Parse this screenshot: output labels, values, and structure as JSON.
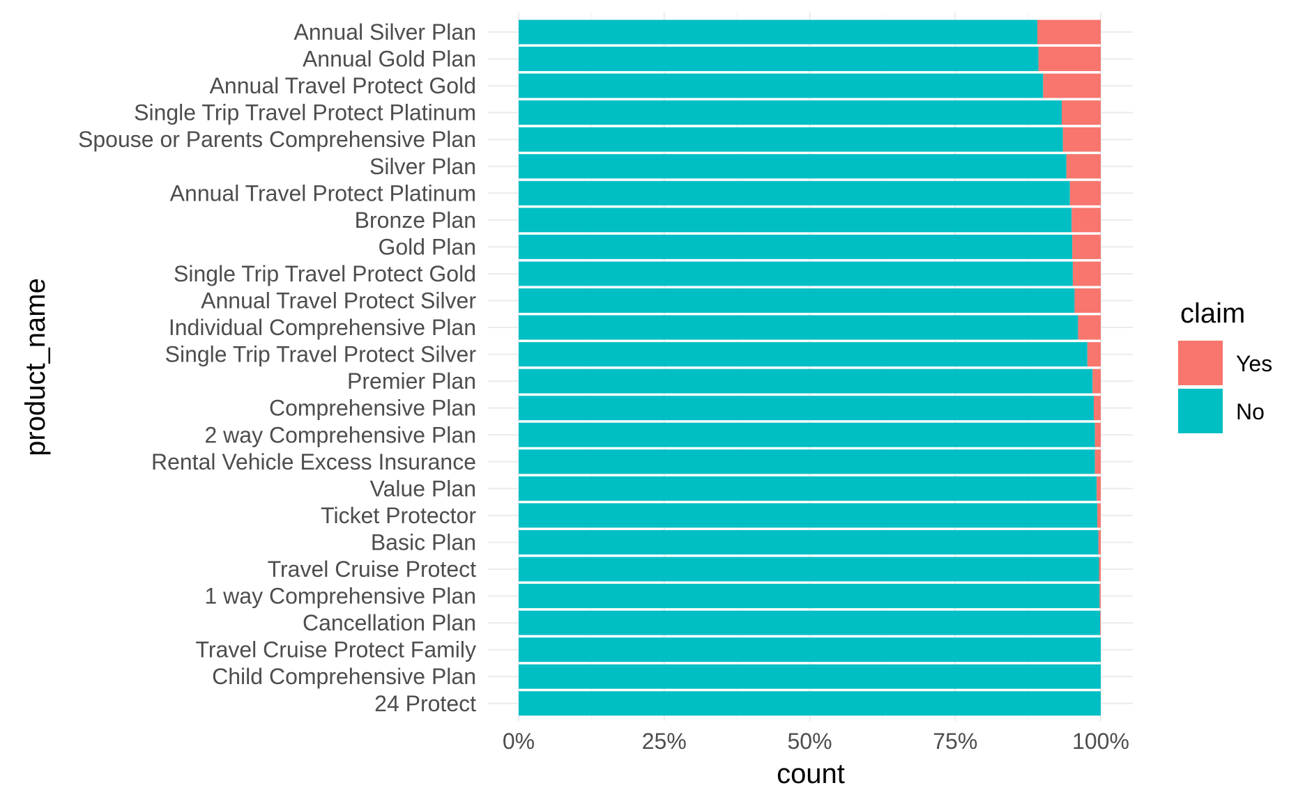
{
  "chart_data": {
    "type": "bar",
    "orientation": "horizontal",
    "stacked": "percent",
    "xlabel": "count",
    "ylabel": "product_name",
    "xlim": [
      0,
      1
    ],
    "x_ticks": [
      "0%",
      "25%",
      "50%",
      "75%",
      "100%"
    ],
    "grid": true,
    "legend_position": "right",
    "legend": {
      "title": "claim",
      "entries": [
        {
          "label": "Yes",
          "color": "#F8766D"
        },
        {
          "label": "No",
          "color": "#00BFC4"
        }
      ]
    },
    "categories": [
      "Annual Silver Plan",
      "Annual Gold Plan",
      "Annual Travel Protect Gold",
      "Single Trip Travel Protect Platinum",
      "Spouse or Parents Comprehensive Plan",
      "Silver Plan",
      "Annual Travel Protect Platinum",
      "Bronze Plan",
      "Gold Plan",
      "Single Trip Travel Protect Gold",
      "Annual Travel Protect Silver",
      "Individual Comprehensive Plan",
      "Single Trip Travel Protect Silver",
      "Premier Plan",
      "Comprehensive Plan",
      "2 way Comprehensive Plan",
      "Rental Vehicle Excess Insurance",
      "Value Plan",
      "Ticket Protector",
      "Basic Plan",
      "Travel Cruise Protect",
      "1 way Comprehensive Plan",
      "Cancellation Plan",
      "Travel Cruise Protect Family",
      "Child Comprehensive Plan",
      "24 Protect"
    ],
    "series": [
      {
        "name": "No",
        "color": "#00BFC4",
        "values": [
          0.891,
          0.893,
          0.901,
          0.933,
          0.935,
          0.941,
          0.947,
          0.95,
          0.951,
          0.952,
          0.955,
          0.961,
          0.977,
          0.986,
          0.988,
          0.99,
          0.99,
          0.993,
          0.994,
          0.996,
          0.997,
          0.998,
          0.999,
          1.0,
          1.0,
          1.0
        ]
      },
      {
        "name": "Yes",
        "color": "#F8766D",
        "values": [
          0.109,
          0.107,
          0.099,
          0.067,
          0.065,
          0.059,
          0.053,
          0.05,
          0.049,
          0.048,
          0.045,
          0.039,
          0.023,
          0.014,
          0.012,
          0.01,
          0.01,
          0.007,
          0.006,
          0.004,
          0.003,
          0.002,
          0.001,
          0.0,
          0.0,
          0.0
        ]
      }
    ]
  }
}
